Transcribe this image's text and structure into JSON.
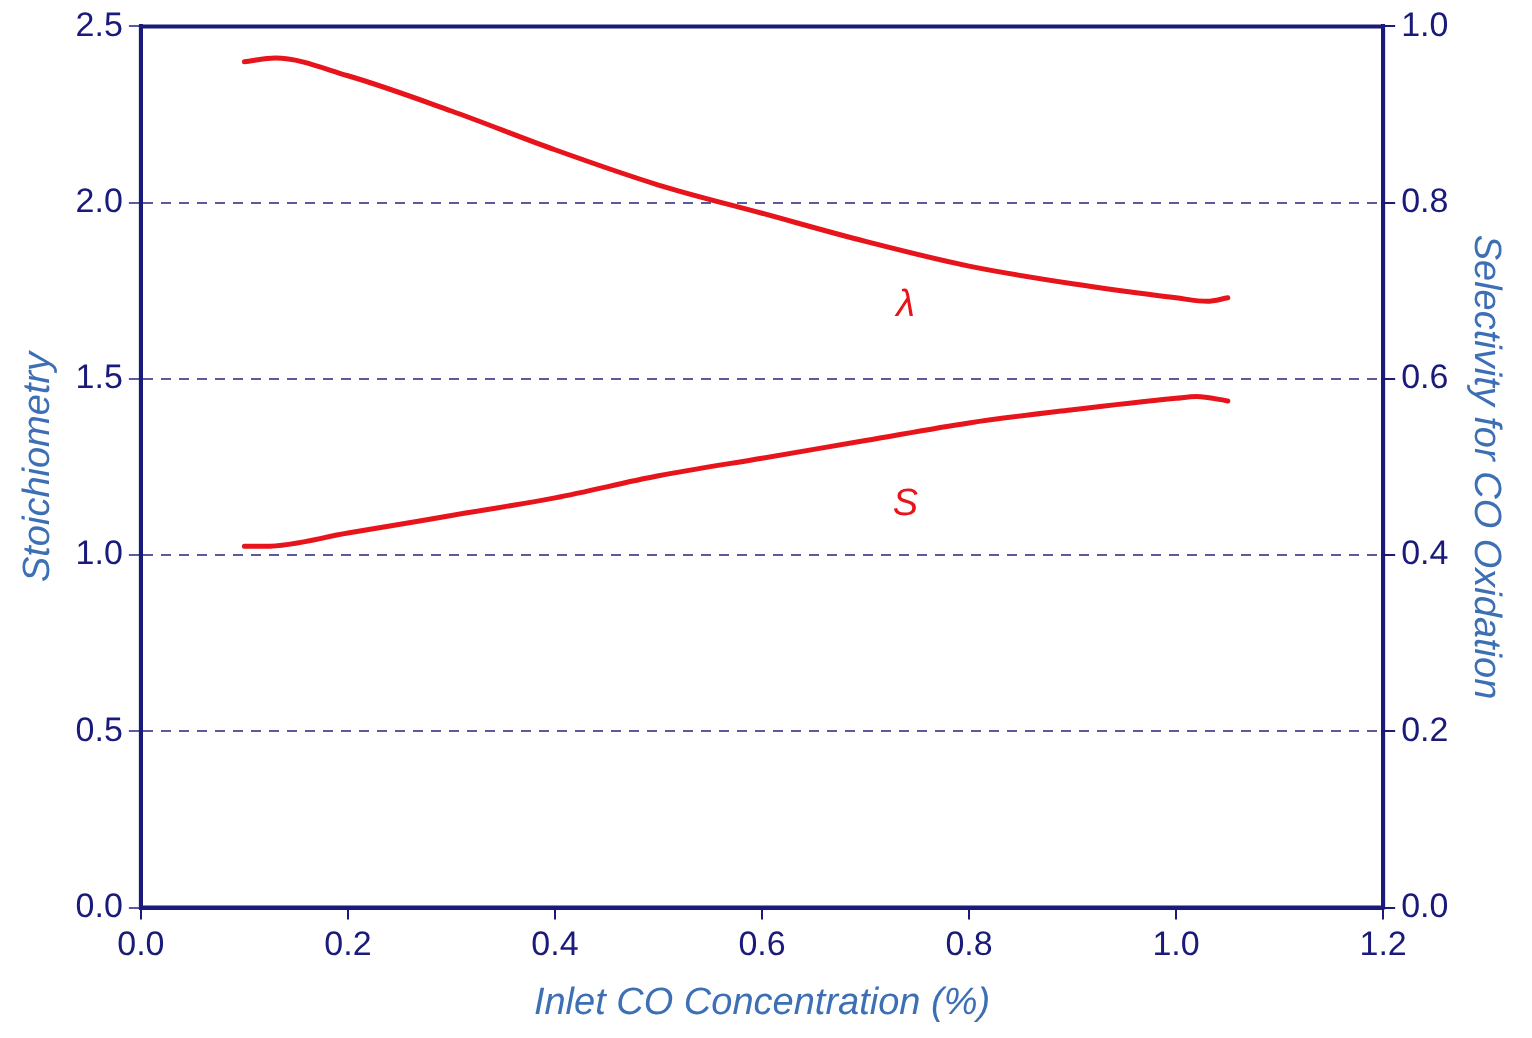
{
  "chart_data": {
    "type": "line",
    "xlabel": "Inlet CO Concentration (%)",
    "ylabel": "Stoichiometry",
    "y2label": "Selectivity for CO Oxidation",
    "xlim": [
      0,
      1.2
    ],
    "xticks": [
      {
        "value": 0,
        "label": "0.0"
      },
      {
        "value": 0.2,
        "label": "0.2"
      },
      {
        "value": 0.4,
        "label": "0.4"
      },
      {
        "value": 0.6,
        "label": "0.6"
      },
      {
        "value": 0.8,
        "label": "0.8"
      },
      {
        "value": 1,
        "label": "1.0"
      },
      {
        "value": 1.2,
        "label": "1.2"
      }
    ],
    "ylim": [
      0,
      2.5
    ],
    "yticks": [
      {
        "value": 0,
        "label": "0.0"
      },
      0.5,
      {
        "value": 1,
        "label": "1.0"
      },
      1.5,
      {
        "value": 2,
        "label": "2.0"
      },
      2.5
    ],
    "y2lim": [
      0,
      1
    ],
    "y2ticks": [
      {
        "value": 0,
        "label": "0.0"
      },
      0.2,
      0.4,
      0.6,
      0.8,
      {
        "value": 1,
        "label": "1.0"
      }
    ],
    "grid": "y",
    "legend": false,
    "marker": "none",
    "line_style": "solid",
    "series": [
      {
        "name": "λ",
        "color": "#e8141c",
        "x": [
          0.1,
          0.13,
          0.2,
          0.3,
          0.4,
          0.5,
          0.6,
          0.7,
          0.8,
          0.9,
          1.0,
          1.03,
          1.05
        ],
        "values": [
          2.4,
          2.41,
          2.36,
          2.26,
          2.15,
          2.05,
          1.97,
          1.89,
          1.82,
          1.77,
          1.73,
          1.72,
          1.73
        ]
      },
      {
        "name": "S",
        "color": "#e8141c",
        "axis": "y2",
        "x": [
          0.1,
          0.12,
          0.2,
          0.3,
          0.4,
          0.5,
          0.6,
          0.7,
          0.8,
          0.9,
          1.0,
          1.02,
          1.05
        ],
        "values": [
          0.41,
          0.41,
          0.425,
          0.445,
          0.465,
          0.49,
          0.51,
          0.53,
          0.55,
          0.565,
          0.578,
          0.58,
          0.575
        ]
      }
    ]
  }
}
